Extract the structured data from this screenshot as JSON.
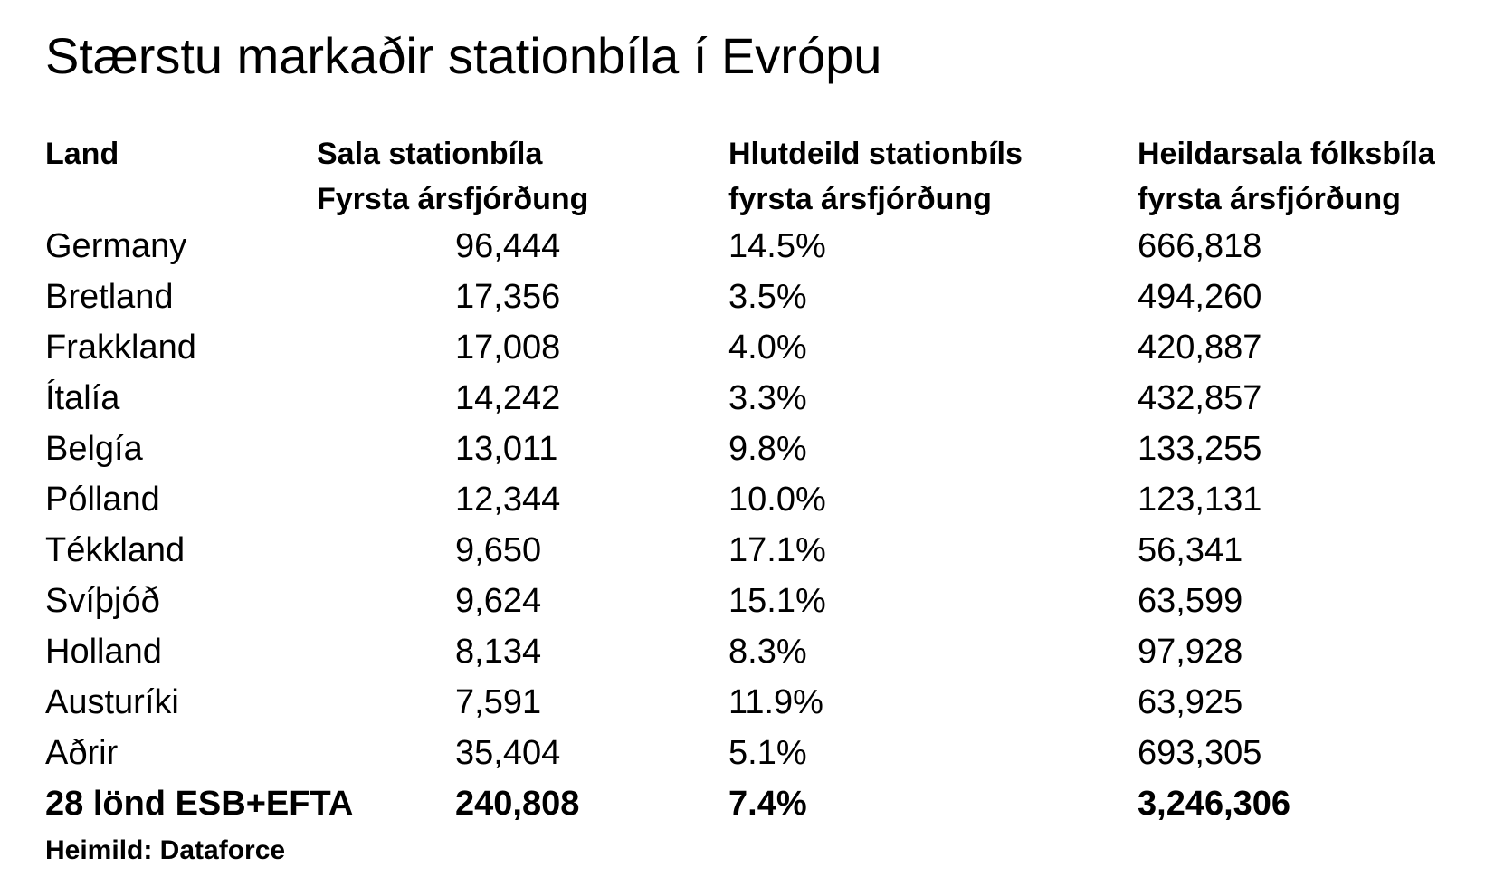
{
  "title": "Stærstu markaðir stationbíla í Evrópu",
  "headers": {
    "country": [
      "Land"
    ],
    "sales": [
      "Sala stationbíla",
      "Fyrsta ársfjórðung"
    ],
    "share": [
      "Hlutdeild stationbíls",
      "fyrsta ársfjórðung"
    ],
    "total": [
      "Heildarsala fólksbíla",
      "fyrsta ársfjórðung"
    ]
  },
  "rows": [
    {
      "country": "Germany",
      "sales": "96,444",
      "share": "14.5%",
      "total": "666,818"
    },
    {
      "country": "Bretland",
      "sales": "17,356",
      "share": "3.5%",
      "total": "494,260"
    },
    {
      "country": "Frakkland",
      "sales": "17,008",
      "share": "4.0%",
      "total": "420,887"
    },
    {
      "country": "Ítalía",
      "sales": "14,242",
      "share": "3.3%",
      "total": "432,857"
    },
    {
      "country": "Belgía",
      "sales": "13,011",
      "share": "9.8%",
      "total": "133,255"
    },
    {
      "country": "Pólland",
      "sales": "12,344",
      "share": "10.0%",
      "total": "123,131"
    },
    {
      "country": "Tékkland",
      "sales": "9,650",
      "share": "17.1%",
      "total": "56,341"
    },
    {
      "country": "Svíþjóð",
      "sales": "9,624",
      "share": "15.1%",
      "total": "63,599"
    },
    {
      "country": "Holland",
      "sales": "8,134",
      "share": "8.3%",
      "total": "97,928"
    },
    {
      "country": "Austuríki",
      "sales": "7,591",
      "share": "11.9%",
      "total": "63,925"
    },
    {
      "country": "Aðrir",
      "sales": "35,404",
      "share": "5.1%",
      "total": "693,305"
    }
  ],
  "total": {
    "country": "28 lönd ESB+EFTA",
    "sales": "240,808",
    "share": "7.4%",
    "total": "3,246,306"
  },
  "source": "Heimild: Dataforce"
}
